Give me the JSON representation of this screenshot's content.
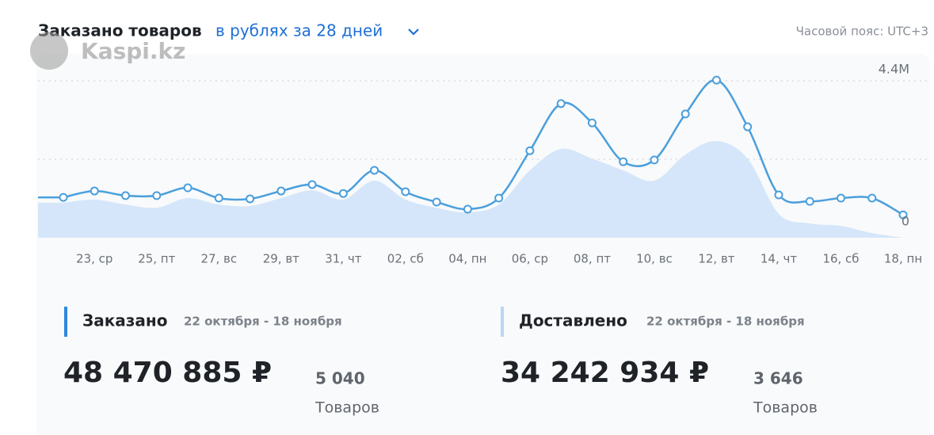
{
  "header": {
    "title": "Заказано товаров",
    "selector": "в рублях за 28 дней",
    "timezone": "Часовой пояс: UTC+3",
    "watermark": "Kaspi.kz"
  },
  "chart_data": {
    "type": "line",
    "categories": [
      null,
      "23, ср",
      null,
      "25, пт",
      null,
      "27, вс",
      null,
      "29, вт",
      null,
      "31, чт",
      null,
      "02, сб",
      null,
      "04, пн",
      null,
      "06, ср",
      null,
      "08, пт",
      null,
      "10, вс",
      null,
      "12, вт",
      null,
      "14, чт",
      null,
      "16, сб",
      null,
      "18, пн"
    ],
    "series": [
      {
        "name": "Заказано",
        "color": "#4a9fdc",
        "values": [
          1130000,
          1310000,
          1180000,
          1180000,
          1400000,
          1110000,
          1090000,
          1310000,
          1490000,
          1240000,
          1890000,
          1290000,
          1000000,
          800000,
          1110000,
          2440000,
          3760000,
          3220000,
          2130000,
          2180000,
          3470000,
          4420000,
          3110000,
          1200000,
          1020000,
          1110000,
          1110000,
          640000
        ]
      },
      {
        "name": "Доставлено",
        "color": "#d5e6fa",
        "values": [
          980000,
          1070000,
          930000,
          840000,
          1110000,
          930000,
          890000,
          1110000,
          1330000,
          1070000,
          1600000,
          1070000,
          840000,
          710000,
          930000,
          1890000,
          2490000,
          2220000,
          1890000,
          1600000,
          2330000,
          2710000,
          2220000,
          670000,
          400000,
          330000,
          130000,
          0
        ]
      }
    ],
    "ylim": [
      0,
      4400000
    ],
    "yticks": [
      0,
      {
        "value": 4400000,
        "label": "4.4M"
      }
    ],
    "minor_gridlines": [
      2200000
    ],
    "grid": true
  },
  "summary": [
    {
      "period": "22 октября - 18 ноября",
      "total": "48 470 885 ₽",
      "count": "5 040",
      "unit": "Товаров"
    },
    {
      "period": "22 октября - 18 ноября",
      "total": "34 242 934 ₽",
      "count": "3 646",
      "unit": "Товаров"
    }
  ]
}
